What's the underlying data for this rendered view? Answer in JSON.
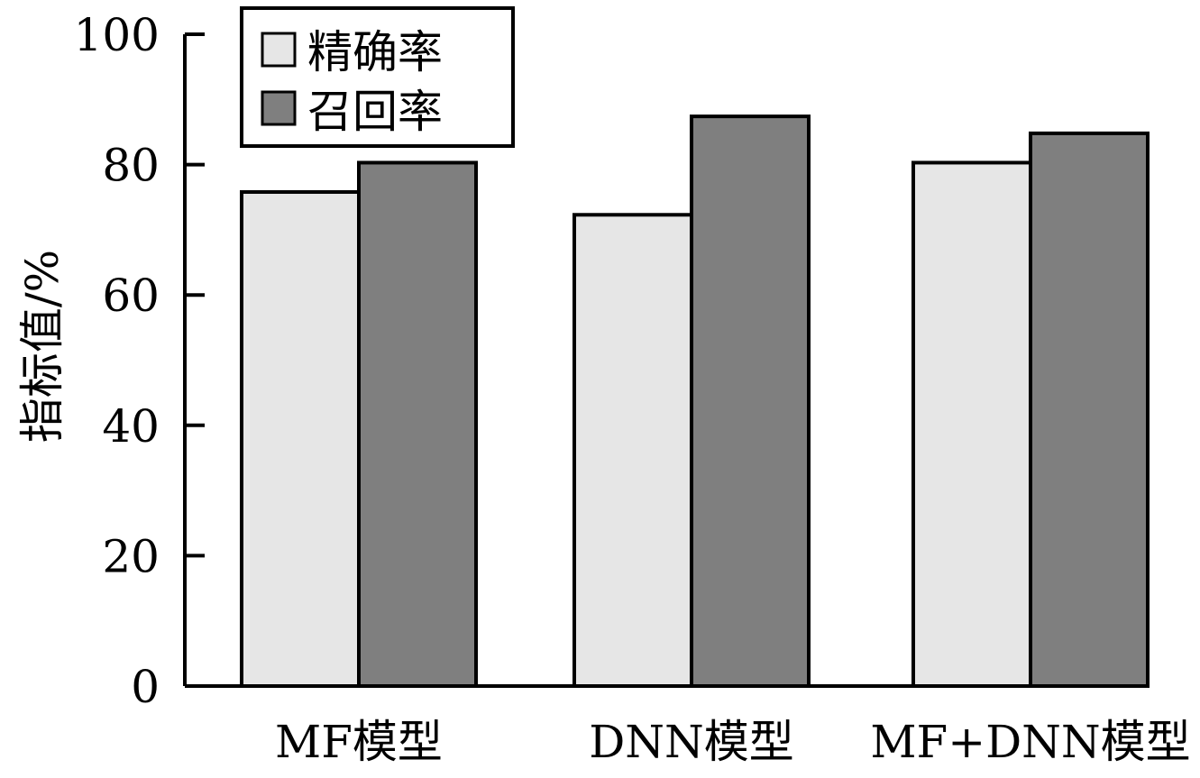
{
  "chart_data": {
    "type": "bar",
    "title": "",
    "xlabel": "",
    "ylabel": "指标值/%",
    "ylim": [
      0,
      100
    ],
    "yticks": [
      0,
      20,
      40,
      60,
      80,
      100
    ],
    "categories": [
      "MF模型",
      "DNN模型",
      "MF+DNN模型"
    ],
    "series": [
      {
        "name": "精确率",
        "values": [
          75.8,
          72.3,
          80.3
        ],
        "color": "#e6e6e6"
      },
      {
        "name": "召回率",
        "values": [
          80.3,
          87.4,
          84.8
        ],
        "color": "#7f7f7f"
      }
    ],
    "grid": false,
    "legend_position": "top-left"
  }
}
